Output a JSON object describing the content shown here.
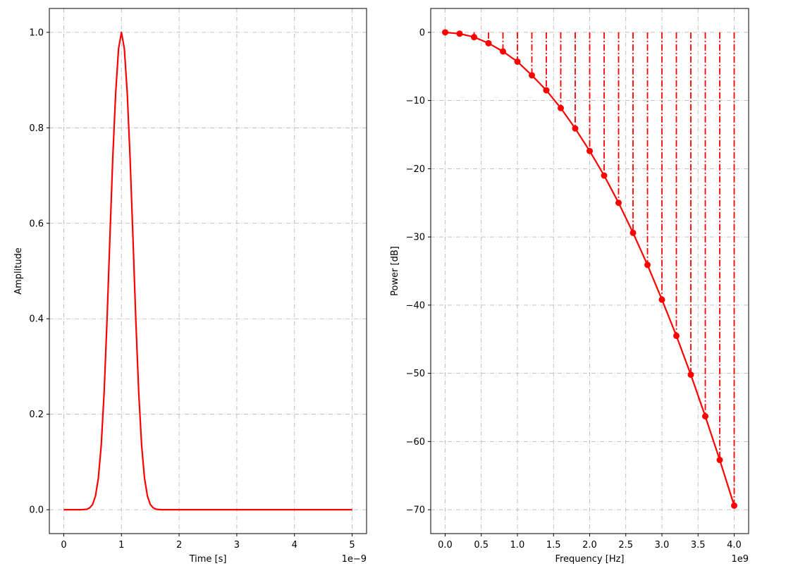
{
  "chart_data": [
    {
      "type": "line",
      "xlabel": "Time [s]",
      "ylabel": "Amplitude",
      "x_offset_label": "1e−9",
      "xlim": [
        -0.25,
        5.25
      ],
      "ylim": [
        -0.05,
        1.05
      ],
      "xticks": [
        0,
        1,
        2,
        3,
        4,
        5
      ],
      "xtick_labels": [
        "0",
        "1",
        "2",
        "3",
        "4",
        "5"
      ],
      "yticks": [
        0.0,
        0.2,
        0.4,
        0.6,
        0.8,
        1.0
      ],
      "ytick_labels": [
        "0.0",
        "0.2",
        "0.4",
        "0.6",
        "0.8",
        "1.0"
      ],
      "grid": true,
      "series": [
        {
          "color": "#ff0000",
          "x": [
            0,
            0.2,
            0.3,
            0.4,
            0.45,
            0.5,
            0.55,
            0.6,
            0.65,
            0.7,
            0.75,
            0.8,
            0.85,
            0.9,
            0.95,
            1.0,
            1.05,
            1.1,
            1.15,
            1.2,
            1.25,
            1.3,
            1.35,
            1.4,
            1.45,
            1.5,
            1.55,
            1.6,
            1.7,
            1.8,
            2.0,
            3.0,
            4.0,
            5.0
          ],
          "y": [
            0.0,
            0.0,
            0.0,
            0.001,
            0.004,
            0.011,
            0.029,
            0.066,
            0.135,
            0.245,
            0.396,
            0.57,
            0.738,
            0.873,
            0.966,
            1.0,
            0.966,
            0.873,
            0.738,
            0.57,
            0.396,
            0.245,
            0.135,
            0.066,
            0.029,
            0.011,
            0.004,
            0.001,
            0.0,
            0.0,
            0.0,
            0.0,
            0.0,
            0.0
          ]
        }
      ]
    },
    {
      "type": "line",
      "xlabel": "Frequency [Hz]",
      "ylabel": "Power [dB]",
      "x_offset_label": "1e9",
      "xlim": [
        -0.2,
        4.2
      ],
      "ylim": [
        -73.5,
        3.5
      ],
      "xticks": [
        0.0,
        0.5,
        1.0,
        1.5,
        2.0,
        2.5,
        3.0,
        3.5,
        4.0
      ],
      "xtick_labels": [
        "0.0",
        "0.5",
        "1.0",
        "1.5",
        "2.0",
        "2.5",
        "3.0",
        "3.5",
        "4.0"
      ],
      "yticks": [
        0,
        -10,
        -20,
        -30,
        -40,
        -50,
        -60,
        -70
      ],
      "ytick_labels": [
        "0",
        "−10",
        "−20",
        "−30",
        "−40",
        "−50",
        "−60",
        "−70"
      ],
      "grid": true,
      "stems": true,
      "series": [
        {
          "color": "#ff0000",
          "marker": "circle",
          "x": [
            0.0,
            0.2,
            0.4,
            0.6,
            0.8,
            1.0,
            1.2,
            1.4,
            1.6,
            1.8,
            2.0,
            2.2,
            2.4,
            2.6,
            2.8,
            3.0,
            3.2,
            3.4,
            3.6,
            3.8,
            4.0
          ],
          "y": [
            0.0,
            -0.2,
            -0.7,
            -1.6,
            -2.8,
            -4.3,
            -6.3,
            -8.5,
            -11.1,
            -14.1,
            -17.4,
            -21.0,
            -25.0,
            -29.4,
            -34.1,
            -39.2,
            -44.5,
            -50.2,
            -56.3,
            -62.7,
            -69.4
          ]
        }
      ]
    }
  ]
}
